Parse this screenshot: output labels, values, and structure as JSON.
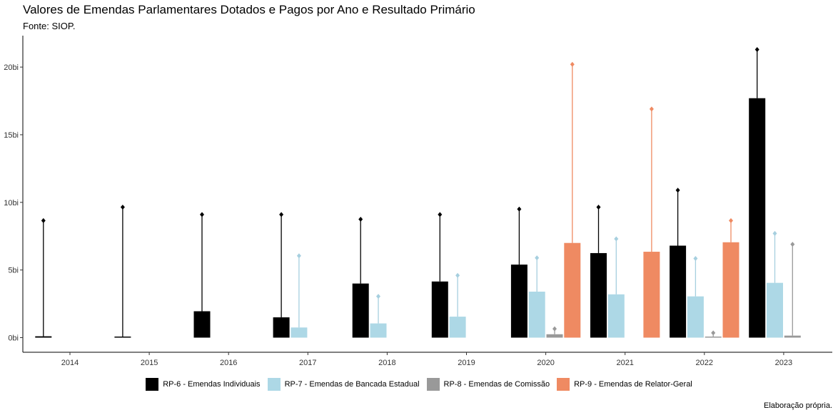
{
  "title": "Valores de Emendas Parlamentares Dotados e Pagos por Ano e Resultado Primário",
  "subtitle": "Fonte: SIOP.",
  "caption": "Elaboração própria.",
  "chart_data": {
    "type": "bar",
    "title": "Valores de Emendas Parlamentares Dotados e Pagos por Ano e Resultado Primário",
    "subtitle": "Fonte: SIOP.",
    "xlabel": "",
    "ylabel": "",
    "ylim": [
      0,
      22
    ],
    "y_ticks": [
      0,
      5,
      10,
      15,
      20
    ],
    "y_tick_labels": [
      "0bi",
      "5bi",
      "10bi",
      "15bi",
      "20bi"
    ],
    "categories": [
      "2014",
      "2015",
      "2016",
      "2017",
      "2018",
      "2019",
      "2020",
      "2021",
      "2022",
      "2023"
    ],
    "legend_position": "bottom",
    "grid": false,
    "series": [
      {
        "name": "RP-6 - Emendas Individuais",
        "color": "#000000",
        "paid": [
          0.1,
          0.0,
          1.95,
          1.5,
          4.0,
          4.15,
          5.4,
          6.25,
          6.8,
          17.7
        ],
        "dotado": [
          8.65,
          9.65,
          9.1,
          9.1,
          8.75,
          9.1,
          9.5,
          9.65,
          10.9,
          21.3
        ]
      },
      {
        "name": "RP-7 - Emendas de Bancada Estadual",
        "color": "#add8e6",
        "paid": [
          null,
          null,
          null,
          0.75,
          1.05,
          1.55,
          3.4,
          3.2,
          3.05,
          4.05
        ],
        "dotado": [
          null,
          null,
          null,
          6.05,
          3.05,
          4.6,
          5.9,
          7.3,
          5.85,
          7.7
        ]
      },
      {
        "name": "RP-8 - Emendas de Comissão",
        "color": "#999999",
        "paid": [
          null,
          null,
          null,
          null,
          null,
          null,
          0.25,
          null,
          0.05,
          0.15
        ],
        "dotado": [
          null,
          null,
          null,
          null,
          null,
          null,
          0.65,
          null,
          0.35,
          6.9
        ]
      },
      {
        "name": "RP-9 - Emendas de Relator-Geral",
        "color": "#ef8a62",
        "paid": [
          null,
          null,
          null,
          null,
          null,
          null,
          7.0,
          6.35,
          7.05,
          null
        ],
        "dotado": [
          null,
          null,
          null,
          null,
          null,
          null,
          20.2,
          16.9,
          8.65,
          null
        ]
      }
    ]
  }
}
